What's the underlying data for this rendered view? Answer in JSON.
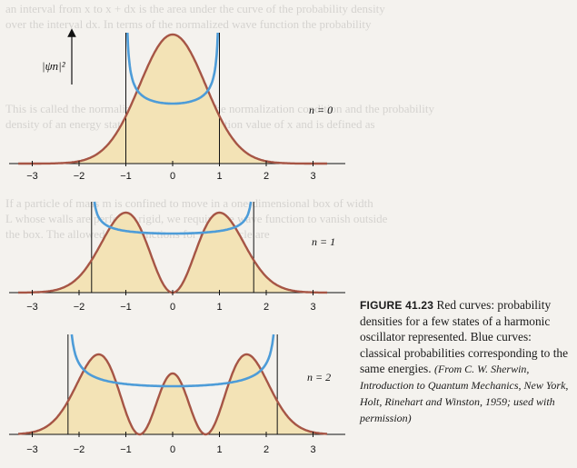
{
  "background_text": [
    "an interval from x to x + dx is the area under the curve of the probability density",
    "over the interval dx. In terms of the normalized wave function the probability",
    "",
    "This is called the normalization condition. The normalization condition and the probability",
    "density of an energy state is called the expectation value of x and is defined as",
    "",
    "If a particle of mass m is confined to move in a one-dimensional box of width",
    "L whose walls are perfectly rigid, we require the wave function to vanish outside",
    "the box. The allowed wave functions for the particle are"
  ],
  "figure": {
    "y_axis_label": "|ψn|²",
    "panels": [
      {
        "state_label": "n = 0",
        "ticks": [
          "−3",
          "−2",
          "−1",
          "0",
          "1",
          "2",
          "3"
        ]
      },
      {
        "state_label": "n = 1",
        "ticks": [
          "−3",
          "−2",
          "−1",
          "0",
          "1",
          "2",
          "3"
        ]
      },
      {
        "state_label": "n = 2",
        "ticks": [
          "−3",
          "−2",
          "−1",
          "0",
          "1",
          "2",
          "3"
        ]
      }
    ],
    "colors": {
      "probability_curve": "#a65545",
      "classical_curve": "#4d9cd8",
      "fill": "#f3e3b6"
    }
  },
  "caption": {
    "figure_id": "FIGURE 41.23",
    "text": "Red curves: probability densities for a few states of a harmonic oscillator represented. Blue curves: classical probabilities corresponding to the same energies.",
    "credit": "(From C. W. Sherwin, Introduction to Quantum Mechanics, New York, Holt, Rinehart and Winston, 1959; used with permission)"
  }
}
